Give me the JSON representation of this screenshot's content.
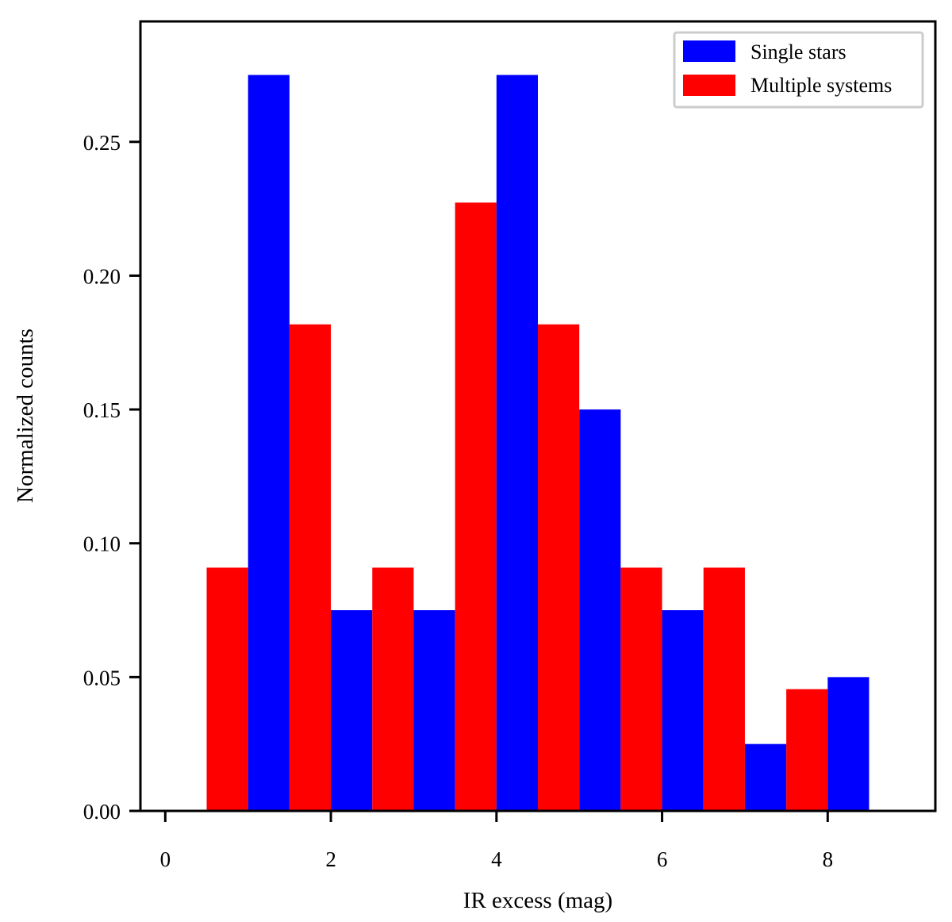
{
  "chart_data": {
    "type": "bar",
    "title": "",
    "xlabel": "IR excess (mag)",
    "ylabel": "Normalized counts",
    "xlim": [
      -0.3,
      9.3
    ],
    "ylim": [
      0.0,
      0.295
    ],
    "bin_width": 1.0,
    "bins": [
      {
        "center": 0.5,
        "single": 0.0,
        "multiple": 0.0909
      },
      {
        "center": 1.5,
        "single": 0.275,
        "multiple": 0.1818
      },
      {
        "center": 2.5,
        "single": 0.075,
        "multiple": 0.0909
      },
      {
        "center": 3.5,
        "single": 0.075,
        "multiple": 0.2273
      },
      {
        "center": 4.5,
        "single": 0.275,
        "multiple": 0.1818
      },
      {
        "center": 5.5,
        "single": 0.15,
        "multiple": 0.0909
      },
      {
        "center": 6.5,
        "single": 0.075,
        "multiple": 0.0909
      },
      {
        "center": 7.5,
        "single": 0.025,
        "multiple": 0.0455
      },
      {
        "center": 8.5,
        "single": 0.05,
        "multiple": 0.0
      }
    ],
    "series": [
      {
        "key": "single",
        "name": "Single stars",
        "color": "#0000ff"
      },
      {
        "key": "multiple",
        "name": "Multiple systems",
        "color": "#ff0000"
      }
    ],
    "xticks": [
      {
        "value": 0,
        "label": "0"
      },
      {
        "value": 2,
        "label": "2"
      },
      {
        "value": 4,
        "label": "4"
      },
      {
        "value": 6,
        "label": "6"
      },
      {
        "value": 8,
        "label": "8"
      }
    ],
    "yticks": [
      {
        "value": 0.0,
        "label": "0.00"
      },
      {
        "value": 0.05,
        "label": "0.05"
      },
      {
        "value": 0.1,
        "label": "0.10"
      },
      {
        "value": 0.15,
        "label": "0.15"
      },
      {
        "value": 0.2,
        "label": "0.20"
      },
      {
        "value": 0.25,
        "label": "0.25"
      }
    ],
    "legend": {
      "position": "top-right",
      "entries": [
        "Single stars",
        "Multiple systems"
      ]
    },
    "grid": false
  }
}
